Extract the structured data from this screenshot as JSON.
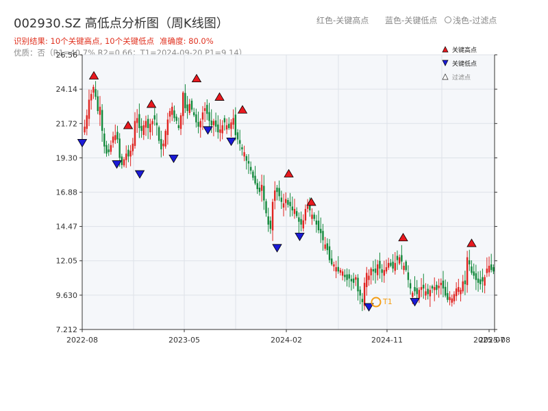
{
  "header": {
    "title": "002930.SZ 高低点分析图（周K线图）",
    "result_line": "识别结果: 10个关键高点, 10个关键低点",
    "accuracy": "准确度: 80.0%",
    "quality_line": "优质：否（R1=40.7%  R2=0.66；T1=2024-09-20 P1=9.14）"
  },
  "top_legend": {
    "red": "红色-关键高点",
    "blue": "蓝色-关键低点",
    "gray": "浅色-过滤点"
  },
  "colors": {
    "up": "#e0221e",
    "down": "#11883a",
    "high_marker": "#e8191f",
    "low_marker": "#1a1ad6",
    "t1": "#f39c12",
    "plot_bg": "#f5f7fa",
    "grid": "#dde2e8"
  },
  "chart_data": {
    "type": "candlestick",
    "title": "002930.SZ 高低点分析图（周K线图）",
    "xlabel": "",
    "ylabel": "",
    "ylim": [
      7.212,
      26.56
    ],
    "yticks": [
      "26.56",
      "24.14",
      "21.72",
      "19.30",
      "16.88",
      "14.47",
      "12.05",
      "9.630",
      "7.212"
    ],
    "xticks": [
      "2022-08",
      "2023-05",
      "2024-02",
      "2024-11",
      "2025-07",
      "2025-08"
    ],
    "grid": true,
    "legend": {
      "position": "top-right",
      "entries": [
        {
          "label": "关键高点",
          "marker": "triangle-up",
          "color": "#e8191f"
        },
        {
          "label": "关键低点",
          "marker": "triangle-down",
          "color": "#1a1ad6"
        },
        {
          "label": "过滤点",
          "marker": "triangle-up-hollow",
          "color": "#888888"
        }
      ]
    },
    "weekly_close": [
      21.5,
      22.3,
      23.4,
      23.8,
      24.3,
      23.6,
      22.6,
      22.9,
      21.2,
      20.1,
      19.6,
      19.7,
      20.2,
      20.8,
      20.9,
      20.6,
      19.3,
      18.8,
      19.2,
      19.6,
      19.4,
      19.8,
      20.3,
      21.9,
      22.1,
      21.4,
      21.2,
      21.6,
      21.9,
      21.4,
      21.7,
      21.9,
      22.0,
      21.6,
      20.5,
      19.9,
      20.3,
      21.2,
      22.0,
      22.6,
      22.9,
      22.1,
      21.9,
      21.4,
      22.3,
      23.9,
      22.8,
      22.6,
      23.1,
      22.7,
      22.3,
      21.8,
      21.5,
      21.9,
      22.5,
      22.8,
      22.4,
      21.9,
      21.6,
      21.9,
      21.5,
      21.1,
      21.3,
      21.6,
      21.8,
      21.6,
      21.4,
      21.8,
      22.1,
      20.9,
      20.6,
      20.3,
      19.9,
      19.7,
      19.1,
      18.9,
      18.4,
      17.9,
      17.5,
      17.1,
      16.9,
      17.4,
      16.3,
      15.4,
      14.6,
      14.3,
      16.2,
      17.0,
      16.9,
      16.6,
      16.2,
      16.1,
      16.4,
      16.0,
      15.9,
      15.6,
      15.7,
      15.2,
      14.8,
      14.6,
      14.9,
      15.7,
      15.9,
      15.6,
      15.3,
      15.0,
      14.6,
      14.2,
      14.0,
      13.5,
      13.2,
      12.8,
      12.1,
      11.8,
      11.8,
      11.6,
      11.3,
      11.4,
      11.3,
      10.9,
      10.7,
      10.8,
      10.6,
      10.5,
      10.9,
      9.9,
      9.6,
      9.14,
      10.5,
      11.2,
      11.0,
      11.5,
      11.3,
      11.2,
      11.8,
      11.5,
      11.2,
      11.4,
      11.6,
      11.9,
      11.7,
      11.5,
      11.9,
      12.1,
      12.3,
      12.0,
      11.7,
      11.4,
      10.7,
      10.1,
      9.8,
      9.9,
      9.7,
      10.0,
      10.2,
      10.1,
      9.9,
      9.7,
      10.0,
      10.1,
      10.2,
      10.0,
      10.3,
      10.5,
      10.1,
      9.6,
      9.3,
      9.5,
      9.4,
      9.7,
      10.1,
      10.2,
      10.0,
      10.6,
      10.4,
      12.3,
      11.8,
      11.2,
      11.0,
      10.7,
      10.5,
      10.4,
      10.6,
      10.9,
      11.5,
      11.7,
      11.4,
      11.3
    ],
    "key_highs": [
      {
        "date": "2022-09",
        "price": 24.8
      },
      {
        "date": "2022-12",
        "price": 21.3
      },
      {
        "date": "2023-02",
        "price": 22.8
      },
      {
        "date": "2023-06",
        "price": 24.6
      },
      {
        "date": "2023-08",
        "price": 23.3
      },
      {
        "date": "2023-10",
        "price": 22.4
      },
      {
        "date": "2024-02",
        "price": 17.9
      },
      {
        "date": "2024-04",
        "price": 15.9
      },
      {
        "date": "2024-12",
        "price": 13.4
      },
      {
        "date": "2025-06",
        "price": 13.0
      }
    ],
    "key_lows": [
      {
        "date": "2022-08",
        "price": 20.7
      },
      {
        "date": "2022-11",
        "price": 19.2
      },
      {
        "date": "2023-01",
        "price": 18.5
      },
      {
        "date": "2023-04",
        "price": 19.6
      },
      {
        "date": "2023-07",
        "price": 21.6
      },
      {
        "date": "2023-09",
        "price": 20.8
      },
      {
        "date": "2024-01",
        "price": 13.3
      },
      {
        "date": "2024-03",
        "price": 14.1
      },
      {
        "date": "2024-09",
        "price": 9.14
      },
      {
        "date": "2025-01",
        "price": 9.5
      }
    ],
    "t1": {
      "label": "T1",
      "date": "2024-09-20",
      "price": 9.14
    }
  }
}
